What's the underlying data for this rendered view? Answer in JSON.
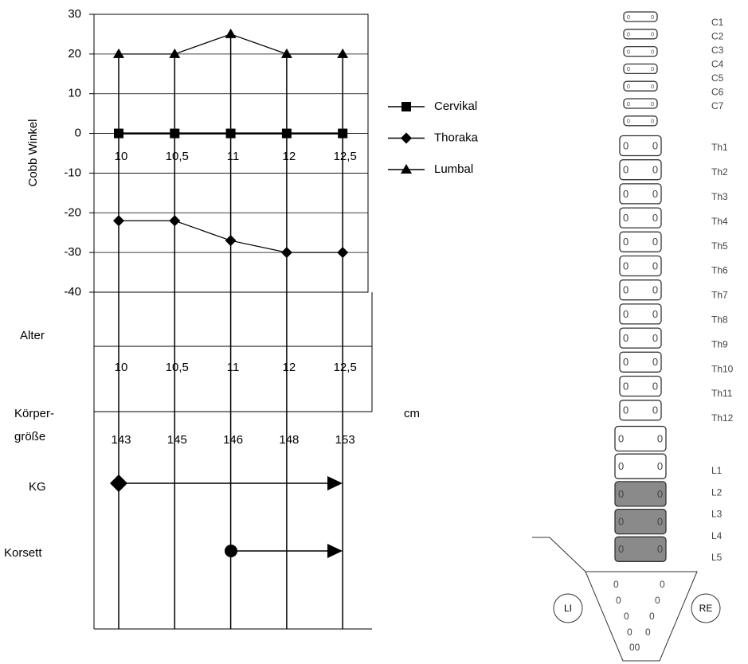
{
  "chart_data": {
    "type": "line",
    "y_label": "Cobb Winkel",
    "categories": [
      "10",
      "10,5",
      "11",
      "12",
      "12,5"
    ],
    "series": [
      {
        "name": "Cervikal",
        "color": "#000000",
        "marker": "square",
        "values": [
          0,
          0,
          0,
          0,
          0
        ]
      },
      {
        "name": "Thoraka",
        "color": "#000000",
        "marker": "diamond",
        "values": [
          -22,
          -22,
          -27,
          -30,
          -30
        ]
      },
      {
        "name": "Lumbal",
        "color": "#000000",
        "marker": "triangle",
        "values": [
          20,
          20,
          25,
          20,
          20
        ]
      }
    ],
    "ylim": [
      -40,
      30
    ],
    "yticks": [
      -40,
      -30,
      -20,
      -10,
      0,
      10,
      20,
      30
    ],
    "grid": true
  },
  "table": {
    "age_label": "Alter",
    "ages": [
      "10",
      "10,5",
      "11",
      "12",
      "12,5"
    ],
    "height_label": [
      "Körper-",
      "größe"
    ],
    "heights": [
      143,
      145,
      146,
      148,
      153
    ],
    "height_unit": "cm",
    "kg_label": "KG",
    "corset_label": "Korsett"
  },
  "spine": {
    "vertebrae": [
      "C1",
      "C2",
      "C3",
      "C4",
      "C5",
      "C6",
      "C7",
      "Th1",
      "Th2",
      "Th3",
      "Th4",
      "Th5",
      "Th6",
      "Th7",
      "Th8",
      "Th9",
      "Th10",
      "Th11",
      "Th12",
      "L1",
      "L2",
      "L3",
      "L4",
      "L5"
    ],
    "left": "LI",
    "right": "RE"
  }
}
